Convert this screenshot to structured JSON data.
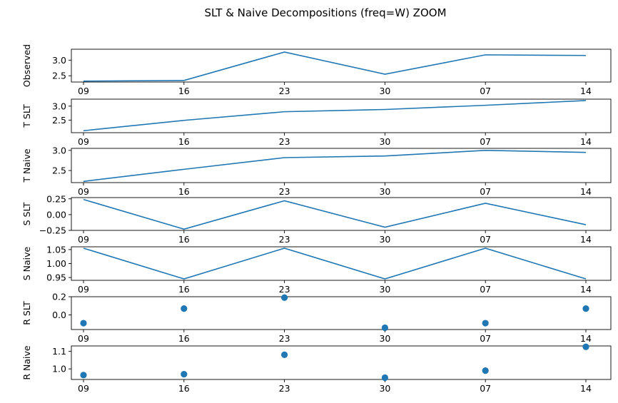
{
  "title": "SLT & Naive Decompositions (freq=W) ZOOM",
  "colors": {
    "series": "#1f77b4",
    "axis": "#000000",
    "background": "#ffffff"
  },
  "chart_data": [
    {
      "type": "line",
      "ylabel": "Observed",
      "x": [
        "09",
        "16",
        "23",
        "30",
        "07",
        "14"
      ],
      "values": [
        2.33,
        2.35,
        3.26,
        2.55,
        3.17,
        3.15
      ],
      "ylim": [
        2.3,
        3.35
      ],
      "yticks": [
        2.5,
        3.0
      ],
      "ytick_labels": [
        "2.5",
        "3.0"
      ]
    },
    {
      "type": "line",
      "ylabel": "T SLT",
      "x": [
        "09",
        "16",
        "23",
        "30",
        "07",
        "14"
      ],
      "values": [
        2.12,
        2.49,
        2.8,
        2.88,
        3.03,
        3.2
      ],
      "ylim": [
        2.05,
        3.25
      ],
      "yticks": [
        2.5,
        3.0
      ],
      "ytick_labels": [
        "2.5",
        "3.0"
      ]
    },
    {
      "type": "line",
      "ylabel": "T Naive",
      "x": [
        "09",
        "16",
        "23",
        "30",
        "07",
        "14"
      ],
      "values": [
        2.23,
        2.53,
        2.82,
        2.86,
        3.0,
        2.95
      ],
      "ylim": [
        2.2,
        3.05
      ],
      "yticks": [
        2.5,
        3.0
      ],
      "ytick_labels": [
        "2.5",
        "3.0"
      ]
    },
    {
      "type": "line",
      "ylabel": "S SLT",
      "x": [
        "09",
        "16",
        "23",
        "30",
        "07",
        "14"
      ],
      "values": [
        0.24,
        -0.23,
        0.22,
        -0.2,
        0.18,
        -0.16
      ],
      "ylim": [
        -0.25,
        0.27
      ],
      "yticks": [
        -0.25,
        0.0,
        0.25
      ],
      "ytick_labels": [
        "−0.25",
        "0.00",
        "0.25"
      ]
    },
    {
      "type": "line",
      "ylabel": "S Naive",
      "x": [
        "09",
        "16",
        "23",
        "30",
        "07",
        "14"
      ],
      "values": [
        1.055,
        0.945,
        1.055,
        0.945,
        1.055,
        0.945
      ],
      "ylim": [
        0.94,
        1.06
      ],
      "yticks": [
        0.95,
        1.0,
        1.05
      ],
      "ytick_labels": [
        "0.95",
        "1.00",
        "1.05"
      ]
    },
    {
      "type": "scatter",
      "ylabel": "R SLT",
      "x": [
        "09",
        "16",
        "23",
        "30",
        "07",
        "14"
      ],
      "values": [
        -0.09,
        0.07,
        0.19,
        -0.14,
        -0.09,
        0.07
      ],
      "ylim": [
        -0.16,
        0.2
      ],
      "yticks": [
        0.0,
        0.2
      ],
      "ytick_labels": [
        "0.0",
        "0.2"
      ]
    },
    {
      "type": "scatter",
      "ylabel": "R Naive",
      "x": [
        "09",
        "16",
        "23",
        "30",
        "07",
        "14"
      ],
      "values": [
        0.965,
        0.97,
        1.08,
        0.95,
        0.99,
        1.125
      ],
      "ylim": [
        0.94,
        1.13
      ],
      "yticks": [
        1.0,
        1.1
      ],
      "ytick_labels": [
        "1.0",
        "1.1"
      ]
    }
  ]
}
